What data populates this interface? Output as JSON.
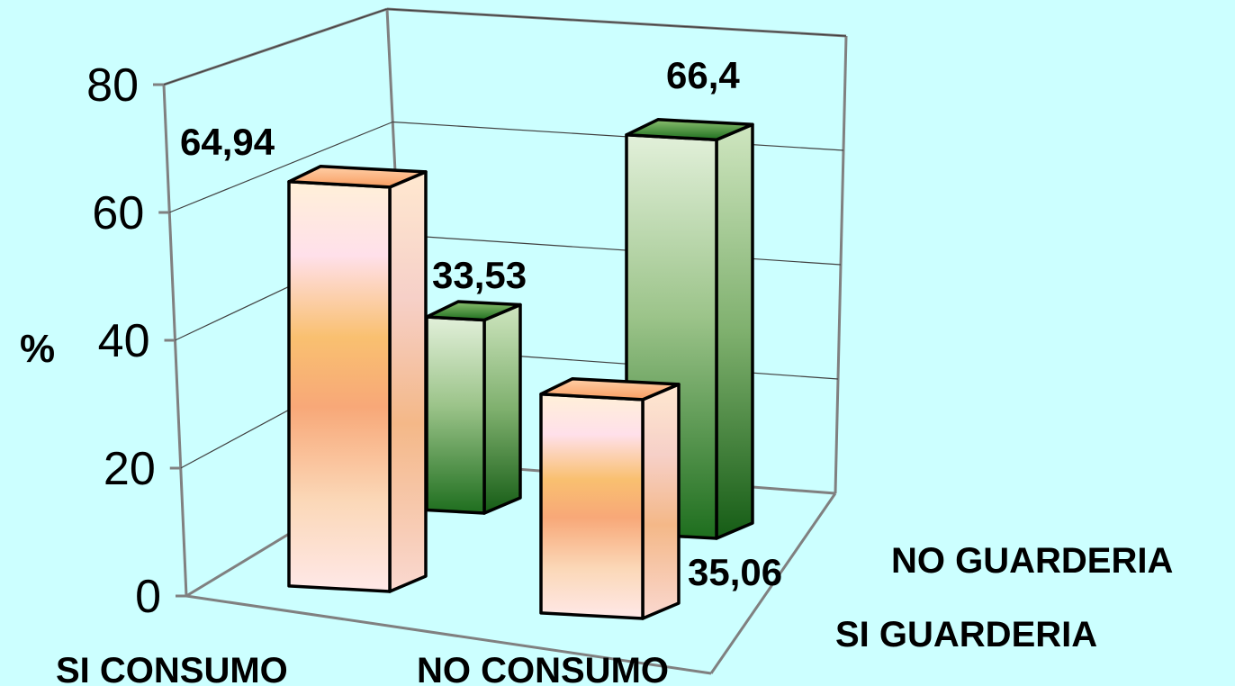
{
  "chart_data": {
    "type": "bar",
    "ylabel": "%",
    "ylim": [
      0,
      80
    ],
    "yticks": [
      "0",
      "20",
      "40",
      "60",
      "80"
    ],
    "categories": [
      "SI CONSUMO",
      "NO CONSUMO"
    ],
    "series": [
      {
        "name": "SI GUARDERIA",
        "values": [
          64.94,
          35.06
        ],
        "labels": [
          "64,94",
          "35,06"
        ],
        "color": "#f8a878"
      },
      {
        "name": "NO GUARDERIA",
        "values": [
          33.53,
          66.4
        ],
        "labels": [
          "33,53",
          "66,4"
        ],
        "color": "#1e6e1e"
      }
    ],
    "grid": true,
    "legend": "right"
  }
}
